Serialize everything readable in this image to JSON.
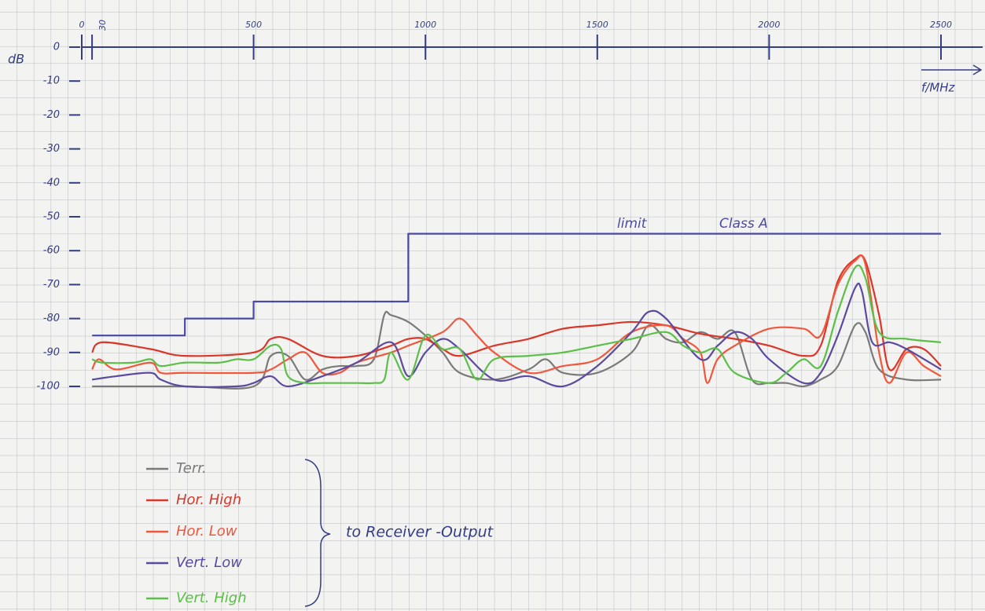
{
  "chart_data": {
    "type": "line",
    "ylabel": "dB",
    "xlabel": "f/MHz",
    "xlim": [
      0,
      2500
    ],
    "ylim": [
      -100,
      0
    ],
    "xticks": [
      0,
      30,
      500,
      1000,
      1500,
      2000,
      2500
    ],
    "yticks": [
      0,
      -10,
      -20,
      -30,
      -40,
      -50,
      -60,
      -70,
      -80,
      -90,
      -100
    ],
    "limit": {
      "color": "#4a4aa6",
      "x": [
        30,
        300,
        300,
        500,
        500,
        950,
        950,
        2500
      ],
      "values": [
        -85,
        -85,
        -80,
        -80,
        -75,
        -75,
        -55,
        -55
      ]
    },
    "annotations": [
      "limit",
      "Class A",
      "to Receiver -Output"
    ],
    "series": [
      {
        "name": "Terr.",
        "color": "#7a7a7a",
        "x": [
          30,
          300,
          500,
          550,
          600,
          650,
          700,
          750,
          800,
          850,
          880,
          900,
          950,
          1000,
          1050,
          1100,
          1200,
          1300,
          1350,
          1400,
          1500,
          1600,
          1650,
          1700,
          1750,
          1800,
          1850,
          1900,
          1950,
          2000,
          2050,
          2100,
          2150,
          2200,
          2250,
          2280,
          2320,
          2400,
          2500
        ],
        "values": [
          -100,
          -100,
          -100,
          -91,
          -91,
          -98,
          -95,
          -94,
          -94,
          -92,
          -79,
          -79,
          -81,
          -85,
          -90,
          -96,
          -98,
          -95,
          -92,
          -96,
          -96,
          -90,
          -82,
          -86,
          -87,
          -84,
          -86,
          -84,
          -98,
          -99,
          -99,
          -100,
          -98,
          -94,
          -82,
          -84,
          -95,
          -98,
          -98
        ]
      },
      {
        "name": "Hor. High",
        "color": "#d8372a",
        "x": [
          30,
          60,
          200,
          300,
          500,
          550,
          600,
          700,
          800,
          900,
          950,
          1000,
          1050,
          1100,
          1200,
          1300,
          1400,
          1500,
          1600,
          1700,
          1800,
          1900,
          2000,
          2100,
          2150,
          2200,
          2250,
          2280,
          2320,
          2350,
          2400,
          2450,
          2500
        ],
        "values": [
          -90,
          -87,
          -89,
          -91,
          -90,
          -86,
          -86,
          -91,
          -91,
          -88,
          -86,
          -86,
          -89,
          -91,
          -88,
          -86,
          -83,
          -82,
          -81,
          -82,
          -84.5,
          -86,
          -88,
          -91,
          -88,
          -69,
          -62.5,
          -63,
          -79,
          -95,
          -89,
          -89,
          -94
        ]
      },
      {
        "name": "Hor. Low",
        "color": "#f0583e",
        "x": [
          30,
          50,
          100,
          200,
          230,
          300,
          500,
          550,
          600,
          650,
          700,
          750,
          800,
          900,
          950,
          1050,
          1100,
          1150,
          1200,
          1300,
          1400,
          1500,
          1600,
          1700,
          1750,
          1800,
          1820,
          1850,
          1900,
          2000,
          2100,
          2150,
          2200,
          2250,
          2280,
          2320,
          2350,
          2400,
          2450,
          2500
        ],
        "values": [
          -95,
          -92,
          -95,
          -93,
          -96,
          -96,
          -96,
          -95,
          -92,
          -90,
          -96,
          -96,
          -93,
          -90,
          -88,
          -84,
          -80,
          -85,
          -90,
          -96,
          -94,
          -92,
          -84,
          -82,
          -86,
          -90,
          -99,
          -92,
          -88,
          -83,
          -83,
          -85,
          -70,
          -63,
          -64,
          -90,
          -99,
          -90,
          -94,
          -97
        ]
      },
      {
        "name": "Vert. Low",
        "color": "#5b4a9e",
        "x": [
          30,
          100,
          200,
          230,
          300,
          450,
          500,
          550,
          600,
          700,
          800,
          900,
          950,
          1000,
          1050,
          1100,
          1200,
          1300,
          1400,
          1500,
          1600,
          1650,
          1700,
          1800,
          1850,
          1900,
          1950,
          2000,
          2100,
          2150,
          2200,
          2250,
          2270,
          2300,
          2350,
          2400,
          2500
        ],
        "values": [
          -98,
          -97,
          -96,
          -98,
          -100,
          -100,
          -99,
          -97,
          -100,
          -97,
          -93,
          -87,
          -97,
          -90,
          -86,
          -89,
          -98,
          -97,
          -100,
          -94,
          -84,
          -78,
          -80,
          -92,
          -88,
          -84,
          -86,
          -92,
          -99,
          -96,
          -85,
          -71,
          -72,
          -87,
          -87,
          -89,
          -95
        ]
      },
      {
        "name": "Vert. High",
        "color": "#5cbf48",
        "x": [
          30,
          60,
          150,
          200,
          230,
          300,
          400,
          450,
          500,
          550,
          580,
          600,
          650,
          700,
          800,
          850,
          880,
          900,
          950,
          1000,
          1050,
          1100,
          1150,
          1200,
          1300,
          1400,
          1500,
          1600,
          1700,
          1750,
          1800,
          1850,
          1900,
          2000,
          2050,
          2100,
          2150,
          2200,
          2250,
          2280,
          2320,
          2400,
          2500
        ],
        "values": [
          -92,
          -93,
          -93,
          -92,
          -94,
          -93,
          -93,
          -92,
          -92,
          -88,
          -89,
          -97,
          -99,
          -99,
          -99,
          -99,
          -98,
          -90,
          -98,
          -85,
          -89,
          -89,
          -98,
          -92,
          -91,
          -90,
          -88,
          -86,
          -84,
          -88,
          -90,
          -89,
          -96,
          -99,
          -96,
          -92,
          -94,
          -78,
          -65,
          -68,
          -84,
          -86,
          -87
        ]
      }
    ]
  }
}
